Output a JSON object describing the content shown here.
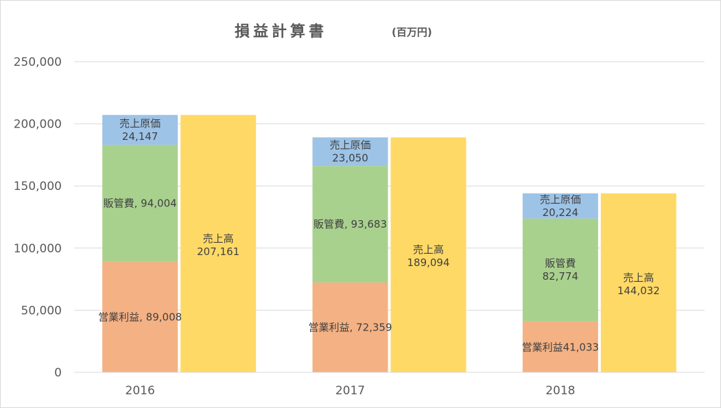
{
  "chart_data": {
    "type": "bar",
    "title": "損益計算書",
    "subtitle": "(百万円)",
    "categories": [
      "2016",
      "2017",
      "2018"
    ],
    "ylim": [
      0,
      250000
    ],
    "yticks": [
      "0",
      "50,000",
      "100,000",
      "150,000",
      "200,000",
      "250,000"
    ],
    "ytick_values": [
      0,
      50000,
      100000,
      150000,
      200000,
      250000
    ],
    "grid": true,
    "cost_stack": [
      {
        "name": "営業利益",
        "color": "#f4b183",
        "values": [
          89008,
          72359,
          41033
        ],
        "labels": [
          [
            "営業利益, 89,008"
          ],
          [
            "営業利益, 72,359"
          ],
          [
            "営業利益41,033"
          ]
        ]
      },
      {
        "name": "販管費",
        "color": "#a9d18e",
        "values": [
          94004,
          93683,
          82774
        ],
        "labels": [
          [
            "販管費, 94,004"
          ],
          [
            "販管費, 93,683"
          ],
          [
            "販管費",
            "82,774"
          ]
        ]
      },
      {
        "name": "売上原価",
        "color": "#9dc3e6",
        "values": [
          24147,
          23050,
          20224
        ],
        "labels": [
          [
            "売上原価",
            "24,147"
          ],
          [
            "売上原価",
            "23,050"
          ],
          [
            "売上原価",
            "20,224"
          ]
        ]
      }
    ],
    "sales": {
      "name": "売上高",
      "color": "#ffd966",
      "values": [
        207161,
        189094,
        144032
      ],
      "labels": [
        [
          "売上高",
          "207,161"
        ],
        [
          "売上高",
          "189,094"
        ],
        [
          "売上高",
          "144,032"
        ]
      ]
    }
  }
}
